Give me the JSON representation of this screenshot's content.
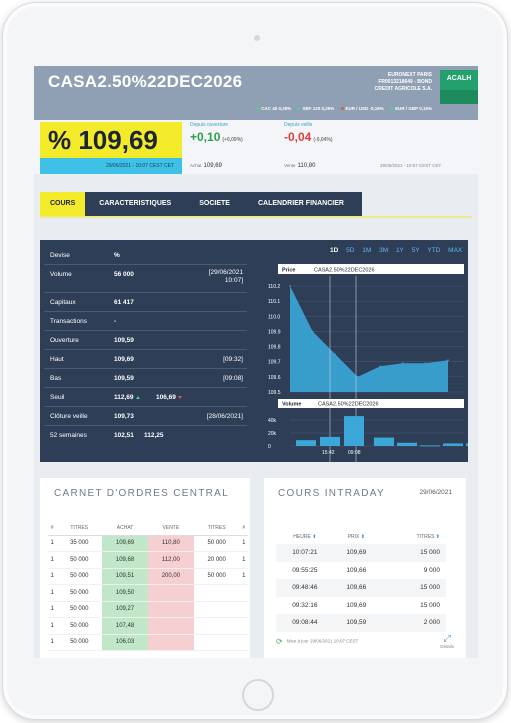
{
  "header": {
    "title": "CASA2.50%22DEC2026",
    "market": "EURONEXT PARIS",
    "isin": "FR0013218649 - BOND",
    "issuer": "CREDIT AGRICOLE S.A.",
    "ticker": "ACALH",
    "indices": [
      {
        "text": "CAC 40 0,25%",
        "dir": "up"
      },
      {
        "text": "SBF 120 0,25%",
        "dir": "up"
      },
      {
        "text": "EUR / USD -0,16%",
        "dir": "down"
      },
      {
        "text": "EUR / GBP 0,15%",
        "dir": "up"
      }
    ]
  },
  "price": {
    "value": "% 109,69",
    "timestamp": "29/06/2021 - 10:07 CEST  CET",
    "open_label": "Depuis ouverture",
    "open_change": "+0,10",
    "open_pct": "(+0,09%)",
    "prev_label": "Depuis veille",
    "prev_change": "-0,04",
    "prev_pct": "(-0,04%)",
    "buy_label": "Achat",
    "buy_value": "109,69",
    "sell_label": "Vente",
    "sell_value": "110,80",
    "sub_timestamp": "29/06/2021 - 10:57 CEST  CET"
  },
  "tabs": [
    "COURS",
    "CARACTERISTIQUES",
    "SOCIETE",
    "CALENDRIER FINANCIER"
  ],
  "details": [
    {
      "label": "Devise",
      "value": "%",
      "value2": "",
      "right": ""
    },
    {
      "label": "Volume",
      "value": "56 000",
      "value2": "",
      "right": "[29/06/2021 10:07]"
    },
    {
      "label": "Capitaux",
      "value": "61 417",
      "value2": "",
      "right": ""
    },
    {
      "label": "Transactions",
      "value": "-",
      "value2": "",
      "right": ""
    },
    {
      "label": "Ouverture",
      "value": "109,59",
      "value2": "",
      "right": ""
    },
    {
      "label": "Haut",
      "value": "109,69",
      "value2": "",
      "right": "[09:32]"
    },
    {
      "label": "Bas",
      "value": "109,59",
      "value2": "",
      "right": "[09:08]"
    },
    {
      "label": "Seuil",
      "value": "112,69",
      "value2": "106,69",
      "right": ""
    },
    {
      "label": "Clôture veille",
      "value": "109,73",
      "value2": "",
      "right": "[28/06/2021]"
    },
    {
      "label": "52 semaines",
      "value": "102,51",
      "value2": "112,25",
      "right": ""
    }
  ],
  "periods": [
    "1D",
    "5D",
    "1M",
    "3M",
    "1Y",
    "5Y",
    "YTD",
    "MAX"
  ],
  "chart_data": [
    {
      "type": "area",
      "title": "CASA2.50%22DEC2026",
      "series_label": "Price",
      "x_labels": [
        "15:42",
        "09:08"
      ],
      "x": [
        0,
        1,
        2,
        3,
        4,
        5,
        6,
        7
      ],
      "y": [
        110.2,
        109.9,
        109.75,
        109.6,
        109.67,
        109.69,
        109.69,
        109.71
      ],
      "yticks": [
        109.5,
        109.6,
        109.7,
        109.8,
        109.9,
        110.0,
        110.1,
        110.2
      ],
      "ylim": [
        109.5,
        110.2
      ]
    },
    {
      "type": "bar",
      "title": "CASA2.50%22DEC2026",
      "series_label": "Volume",
      "values": [
        9000,
        14000,
        46000,
        13000,
        5000,
        1000,
        4000,
        4000,
        4000,
        4000,
        4000
      ],
      "yticks": [
        "0",
        "20k",
        "40k"
      ],
      "ylim": [
        0,
        40000
      ]
    }
  ],
  "orderbook": {
    "title": "CARNET D'ORDRES CENTRAL",
    "headers": [
      "#",
      "TITRES",
      "ACHAT",
      "VENTE",
      "TITRES",
      "#"
    ],
    "rows": [
      [
        "1",
        "35 000",
        "109,69",
        "110,80",
        "50 000",
        "1"
      ],
      [
        "1",
        "50 000",
        "109,68",
        "112,00",
        "20 000",
        "1"
      ],
      [
        "1",
        "50 000",
        "109,51",
        "200,00",
        "50 000",
        "1"
      ],
      [
        "1",
        "50 000",
        "109,50",
        "",
        "",
        ""
      ],
      [
        "1",
        "50 000",
        "109,27",
        "",
        "",
        ""
      ],
      [
        "1",
        "50 000",
        "107,48",
        "",
        "",
        ""
      ],
      [
        "1",
        "50 000",
        "106,03",
        "",
        "",
        ""
      ]
    ]
  },
  "intraday": {
    "title": "COURS INTRADAY",
    "date": "29/06/2021",
    "headers": [
      "HEURE",
      "PRIX",
      "TITRES"
    ],
    "rows": [
      [
        "10:07:21",
        "109,69",
        "15 000"
      ],
      [
        "09:55:25",
        "109,66",
        "9 000"
      ],
      [
        "09:48:46",
        "109,66",
        "15 000"
      ],
      [
        "09:32:16",
        "109,69",
        "15 000"
      ],
      [
        "09:08:44",
        "109,59",
        "2 000"
      ]
    ],
    "updated": "Mise à jour 29/06/2021 10:07 CEST",
    "details_label": "Détails"
  }
}
